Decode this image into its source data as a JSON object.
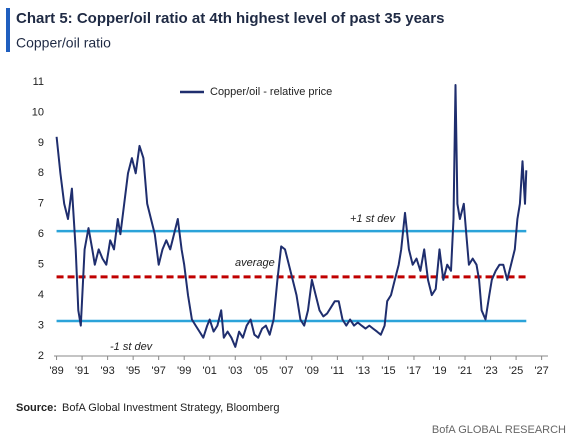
{
  "chart_data": {
    "type": "line",
    "title": "Chart 5: Copper/oil ratio at 4th highest level of past 35 years",
    "subtitle": "Copper/oil ratio",
    "source_label": "Source:",
    "source": "BofA Global Investment Strategy, Bloomberg",
    "footer": "BofA GLOBAL RESEARCH",
    "x": [
      1989.0,
      1989.3,
      1989.6,
      1989.9,
      1990.2,
      1990.5,
      1990.7,
      1990.9,
      1991.2,
      1991.5,
      1991.8,
      1992.0,
      1992.3,
      1992.6,
      1992.9,
      1993.2,
      1993.5,
      1993.8,
      1994.0,
      1994.3,
      1994.6,
      1994.9,
      1995.2,
      1995.5,
      1995.8,
      1996.1,
      1996.4,
      1996.7,
      1997.0,
      1997.3,
      1997.6,
      1997.9,
      1998.2,
      1998.5,
      1998.8,
      1999.0,
      1999.3,
      1999.6,
      1999.9,
      2000.2,
      2000.5,
      2000.8,
      2001.0,
      2001.3,
      2001.6,
      2001.9,
      2002.1,
      2002.4,
      2002.7,
      2003.0,
      2003.3,
      2003.6,
      2003.9,
      2004.2,
      2004.5,
      2004.8,
      2005.1,
      2005.4,
      2005.7,
      2006.0,
      2006.3,
      2006.6,
      2006.9,
      2007.2,
      2007.5,
      2007.8,
      2008.1,
      2008.4,
      2008.7,
      2009.0,
      2009.3,
      2009.6,
      2009.9,
      2010.2,
      2010.5,
      2010.8,
      2011.1,
      2011.4,
      2011.7,
      2012.0,
      2012.3,
      2012.6,
      2012.9,
      2013.2,
      2013.5,
      2013.8,
      2014.1,
      2014.4,
      2014.7,
      2014.9,
      2015.2,
      2015.5,
      2015.8,
      2016.0,
      2016.3,
      2016.6,
      2016.9,
      2017.2,
      2017.5,
      2017.8,
      2018.1,
      2018.4,
      2018.7,
      2019.0,
      2019.3,
      2019.6,
      2019.9,
      2020.1,
      2020.25,
      2020.4,
      2020.6,
      2020.9,
      2021.1,
      2021.3,
      2021.6,
      2021.9,
      2022.1,
      2022.3,
      2022.6,
      2022.9,
      2023.1,
      2023.4,
      2023.7,
      2024.0,
      2024.3,
      2024.6,
      2024.9,
      2025.1,
      2025.3,
      2025.5,
      2025.7,
      2025.8
    ],
    "series": [
      {
        "name": "Copper/oil - relative price",
        "color": "#1f2e6e",
        "values": [
          9.2,
          8.0,
          7.0,
          6.5,
          7.5,
          5.5,
          3.5,
          3.0,
          5.5,
          6.2,
          5.5,
          5.0,
          5.5,
          5.2,
          5.0,
          5.8,
          5.5,
          6.5,
          6.0,
          7.0,
          8.0,
          8.5,
          8.0,
          8.9,
          8.5,
          7.0,
          6.5,
          6.0,
          5.0,
          5.5,
          5.8,
          5.5,
          6.0,
          6.5,
          5.5,
          5.0,
          4.0,
          3.2,
          3.0,
          2.8,
          2.6,
          3.0,
          3.2,
          2.8,
          3.0,
          3.5,
          2.6,
          2.8,
          2.6,
          2.3,
          2.8,
          2.6,
          3.0,
          3.2,
          2.7,
          2.6,
          2.9,
          3.0,
          2.7,
          3.2,
          4.5,
          5.6,
          5.5,
          5.0,
          4.5,
          4.0,
          3.2,
          3.0,
          3.5,
          4.5,
          4.0,
          3.5,
          3.3,
          3.4,
          3.6,
          3.8,
          3.8,
          3.2,
          3.0,
          3.2,
          3.0,
          3.1,
          3.0,
          2.9,
          3.0,
          2.9,
          2.8,
          2.7,
          3.0,
          3.8,
          4.0,
          4.5,
          5.0,
          5.5,
          6.7,
          5.5,
          5.0,
          5.2,
          4.8,
          5.5,
          4.5,
          4.0,
          4.2,
          5.5,
          4.5,
          5.0,
          4.8,
          6.5,
          10.9,
          7.0,
          6.5,
          7.0,
          6.0,
          5.0,
          5.2,
          5.0,
          4.5,
          3.5,
          3.2,
          4.0,
          4.5,
          4.8,
          5.0,
          5.0,
          4.5,
          5.0,
          5.5,
          6.5,
          7.0,
          8.4,
          7.0,
          8.1
        ]
      }
    ],
    "reference_lines": [
      {
        "label": "+1 st dev",
        "value": 6.1,
        "color": "#2ba3d9"
      },
      {
        "label": "average",
        "value": 4.6,
        "color": "#c00000",
        "dashed": true
      },
      {
        "label": "-1 st dev",
        "value": 3.15,
        "color": "#2ba3d9"
      }
    ],
    "xlim": [
      1988.8,
      2027.5
    ],
    "xticks": [
      {
        "value": 1989,
        "label": "'89"
      },
      {
        "value": 1991,
        "label": "'91"
      },
      {
        "value": 1993,
        "label": "'93"
      },
      {
        "value": 1995,
        "label": "'95"
      },
      {
        "value": 1997,
        "label": "'97"
      },
      {
        "value": 1999,
        "label": "'99"
      },
      {
        "value": 2001,
        "label": "'01"
      },
      {
        "value": 2003,
        "label": "'03"
      },
      {
        "value": 2005,
        "label": "'05"
      },
      {
        "value": 2007,
        "label": "'07"
      },
      {
        "value": 2009,
        "label": "'09"
      },
      {
        "value": 2011,
        "label": "'11"
      },
      {
        "value": 2013,
        "label": "'13"
      },
      {
        "value": 2015,
        "label": "'15"
      },
      {
        "value": 2017,
        "label": "'17"
      },
      {
        "value": 2019,
        "label": "'19"
      },
      {
        "value": 2021,
        "label": "'21"
      },
      {
        "value": 2023,
        "label": "'23"
      },
      {
        "value": 2025,
        "label": "'25"
      },
      {
        "value": 2027,
        "label": "'27"
      }
    ],
    "ylim": [
      2,
      11
    ],
    "yticks": [
      2,
      3,
      4,
      5,
      6,
      7,
      8,
      9,
      10,
      11
    ]
  }
}
